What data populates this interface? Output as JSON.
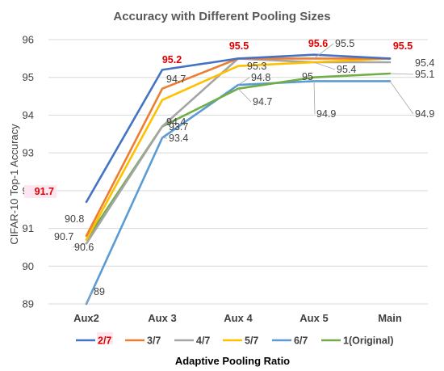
{
  "chart_data": {
    "type": "line",
    "title": "Accuracy with Different Pooling Sizes",
    "xlabel": "Adaptive Pooling Ratio",
    "ylabel": "CIFAR-10  Top-1 Accuracy",
    "categories": [
      "Aux2",
      "Aux 3",
      "Aux 4",
      "Aux 5",
      "Main"
    ],
    "ylim": [
      89,
      96
    ],
    "yticks": [
      89,
      90,
      91,
      92,
      93,
      94,
      95,
      96
    ],
    "grid": true,
    "legend_position": "bottom",
    "series": [
      {
        "name": "2/7",
        "color": "#4472c4",
        "values": [
          91.7,
          95.2,
          95.5,
          95.6,
          95.5
        ]
      },
      {
        "name": "3/7",
        "color": "#ed7d31",
        "values": [
          90.8,
          94.7,
          95.5,
          95.5,
          95.5
        ]
      },
      {
        "name": "4/7",
        "color": "#a5a5a5",
        "values": [
          90.6,
          93.7,
          95.5,
          95.4,
          95.4
        ]
      },
      {
        "name": "5/7",
        "color": "#ffc000",
        "values": [
          90.7,
          94.4,
          95.3,
          95.4,
          95.5
        ]
      },
      {
        "name": "6/7",
        "color": "#5b9bd5",
        "values": [
          89,
          93.4,
          94.8,
          94.9,
          94.9
        ]
      },
      {
        "name": "1(Original)",
        "color": "#70ad47",
        "values": [
          90.7,
          93.7,
          94.7,
          95,
          95.1
        ]
      }
    ],
    "data_labels": [
      {
        "text": "91.7",
        "highlight": true
      },
      {
        "text": "95.2",
        "highlight": true
      },
      {
        "text": "95.5",
        "highlight": true
      },
      {
        "text": "95.6",
        "highlight": true
      },
      {
        "text": "95.5",
        "highlight": true
      },
      {
        "text": "90.8",
        "highlight": false
      },
      {
        "text": "90.7",
        "highlight": false
      },
      {
        "text": "90.6",
        "highlight": false
      },
      {
        "text": "89",
        "highlight": false
      },
      {
        "text": "94.7",
        "highlight": false
      },
      {
        "text": "94.4",
        "highlight": false
      },
      {
        "text": "93.7",
        "highlight": false
      },
      {
        "text": "93.4",
        "highlight": false
      },
      {
        "text": "95.3",
        "highlight": false
      },
      {
        "text": "94.8",
        "highlight": false
      },
      {
        "text": "94.7",
        "highlight": false
      },
      {
        "text": "95.5",
        "highlight": false
      },
      {
        "text": "95",
        "highlight": false
      },
      {
        "text": "95.4",
        "highlight": false
      },
      {
        "text": "94.9",
        "highlight": false
      },
      {
        "text": "95.4",
        "highlight": false
      },
      {
        "text": "95.1",
        "highlight": false
      },
      {
        "text": "94.9",
        "highlight": false
      }
    ]
  }
}
